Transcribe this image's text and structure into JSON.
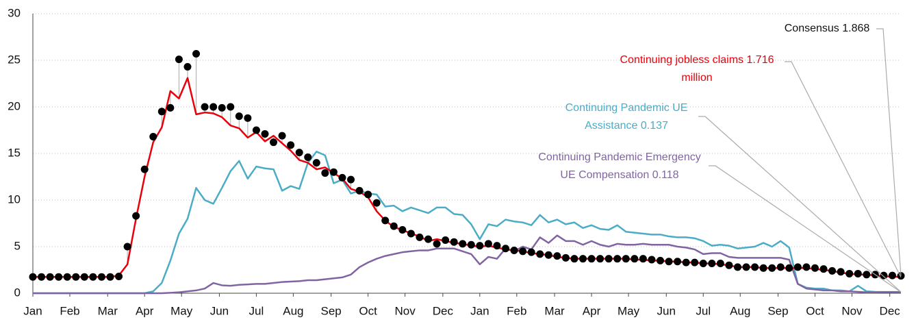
{
  "chart_data": {
    "type": "line",
    "x": [
      0,
      1,
      2,
      3,
      4,
      5,
      6,
      7,
      8,
      9,
      10,
      11,
      12,
      13,
      14,
      15,
      16,
      17,
      18,
      19,
      20,
      21,
      22,
      23,
      24,
      25,
      26,
      27,
      28,
      29,
      30,
      31,
      32,
      33,
      34,
      35,
      36,
      37,
      38,
      39,
      40,
      41,
      42,
      43,
      44,
      45,
      46,
      47,
      48,
      49,
      50,
      51,
      52,
      53,
      54,
      55,
      56,
      57,
      58,
      59,
      60,
      61,
      62,
      63,
      64,
      65,
      66,
      67,
      68,
      69,
      70,
      71,
      72,
      73,
      74,
      75,
      76,
      77,
      78,
      79,
      80,
      81,
      82,
      83,
      84,
      85,
      86,
      87,
      88,
      89,
      90,
      91,
      92,
      93,
      94,
      95,
      96,
      97,
      98,
      99,
      100,
      101
    ],
    "xlim": [
      0,
      101
    ],
    "xticks": [
      {
        "value": 0,
        "label": "Jan"
      },
      {
        "value": 4.3,
        "label": "Feb"
      },
      {
        "value": 8.7,
        "label": "Mar"
      },
      {
        "value": 13,
        "label": "Apr"
      },
      {
        "value": 17.3,
        "label": "May"
      },
      {
        "value": 21.7,
        "label": "Jun"
      },
      {
        "value": 26,
        "label": "Jul"
      },
      {
        "value": 30.3,
        "label": "Aug"
      },
      {
        "value": 34.7,
        "label": "Sep"
      },
      {
        "value": 39,
        "label": "Oct"
      },
      {
        "value": 43.3,
        "label": "Nov"
      },
      {
        "value": 47.7,
        "label": "Dec"
      },
      {
        "value": 52,
        "label": "Jan"
      },
      {
        "value": 56.3,
        "label": "Feb"
      },
      {
        "value": 60.7,
        "label": "Mar"
      },
      {
        "value": 65,
        "label": "Apr"
      },
      {
        "value": 69.3,
        "label": "May"
      },
      {
        "value": 73.7,
        "label": "Jun"
      },
      {
        "value": 78,
        "label": "Jul"
      },
      {
        "value": 82.3,
        "label": "Aug"
      },
      {
        "value": 86.7,
        "label": "Sep"
      },
      {
        "value": 91,
        "label": "Oct"
      },
      {
        "value": 95.3,
        "label": "Nov"
      },
      {
        "value": 99.7,
        "label": "Dec"
      }
    ],
    "ylim": [
      0,
      30
    ],
    "yticks": [
      0,
      5,
      10,
      15,
      20,
      25,
      30
    ],
    "grid": true,
    "drop_lines": true,
    "series": [
      {
        "style": "line",
        "color": "#4bacc6",
        "label": [
          "Continuing Pandemic UE",
          "Assistance 0.137"
        ],
        "values": [
          0,
          0,
          0,
          0,
          0,
          0,
          0,
          0,
          0,
          0,
          0,
          0,
          0,
          0,
          0.2,
          1.1,
          3.5,
          6.4,
          8.0,
          11.3,
          10.0,
          9.6,
          11.3,
          13.1,
          14.2,
          12.3,
          13.6,
          13.4,
          13.3,
          11.0,
          11.5,
          11.2,
          14.0,
          15.2,
          14.8,
          11.8,
          12.2,
          10.7,
          11.0,
          10.7,
          10.6,
          9.3,
          9.4,
          8.8,
          9.2,
          8.9,
          8.6,
          9.2,
          9.2,
          8.5,
          8.4,
          7.4,
          5.8,
          7.4,
          7.2,
          7.9,
          7.7,
          7.6,
          7.3,
          8.4,
          7.6,
          7.9,
          7.4,
          7.6,
          7.0,
          7.3,
          6.9,
          6.8,
          7.3,
          6.6,
          6.5,
          6.4,
          6.3,
          6.3,
          6.1,
          6.0,
          6.0,
          5.9,
          5.6,
          5.1,
          5.2,
          5.1,
          4.8,
          4.9,
          5.0,
          5.4,
          5.0,
          5.6,
          4.9,
          1.0,
          0.6,
          0.5,
          0.5,
          0.3,
          0.3,
          0.2,
          0.8,
          0.2,
          0.15,
          0.14,
          0.14,
          0.137
        ]
      },
      {
        "style": "line",
        "color": "#8064a2",
        "label": [
          "Continuing Pandemic Emergency",
          "UE Compensation 0.118"
        ],
        "values": [
          0,
          0,
          0,
          0,
          0,
          0,
          0,
          0,
          0,
          0,
          0,
          0,
          0,
          0,
          0,
          0,
          0.05,
          0.1,
          0.2,
          0.3,
          0.5,
          1.1,
          0.85,
          0.8,
          0.9,
          0.95,
          1.0,
          1.0,
          1.1,
          1.2,
          1.25,
          1.3,
          1.4,
          1.4,
          1.5,
          1.6,
          1.7,
          2.0,
          2.8,
          3.3,
          3.7,
          4.0,
          4.2,
          4.4,
          4.5,
          4.6,
          4.6,
          4.8,
          4.8,
          4.8,
          4.5,
          4.2,
          3.1,
          3.9,
          3.7,
          4.8,
          4.5,
          5.0,
          4.7,
          6.0,
          5.4,
          6.2,
          5.6,
          5.6,
          5.2,
          5.6,
          5.2,
          5.0,
          5.3,
          5.2,
          5.2,
          5.3,
          5.2,
          5.2,
          5.2,
          5.0,
          4.9,
          4.7,
          4.2,
          4.3,
          4.3,
          3.9,
          3.8,
          3.8,
          3.8,
          3.8,
          3.8,
          3.8,
          3.6,
          1.0,
          0.5,
          0.4,
          0.3,
          0.3,
          0.2,
          0.2,
          0.15,
          0.1,
          0.1,
          0.12,
          0.12,
          0.118
        ]
      },
      {
        "style": "line",
        "color": "#e8000b",
        "label": [
          "Continuing jobless claims 1.716",
          "million"
        ],
        "values": [
          1.75,
          1.75,
          1.75,
          1.75,
          1.75,
          1.75,
          1.75,
          1.75,
          1.75,
          1.75,
          1.9,
          3.1,
          8.0,
          12.5,
          16.2,
          17.8,
          21.7,
          20.9,
          23.1,
          19.2,
          19.4,
          19.3,
          18.9,
          18.0,
          17.7,
          16.7,
          17.3,
          16.3,
          16.9,
          16.1,
          15.3,
          14.3,
          14.0,
          13.3,
          13.5,
          12.9,
          12.3,
          11.2,
          10.9,
          10.3,
          8.8,
          7.8,
          7.1,
          6.8,
          6.4,
          6.1,
          5.6,
          5.8,
          5.6,
          5.4,
          5.3,
          5.1,
          5.0,
          5.1,
          4.9,
          4.7,
          4.6,
          4.5,
          4.3,
          4.2,
          4.1,
          3.9,
          3.8,
          3.7,
          3.7,
          3.7,
          3.7,
          3.7,
          3.7,
          3.7,
          3.6,
          3.6,
          3.5,
          3.5,
          3.4,
          3.4,
          3.3,
          3.3,
          3.2,
          3.2,
          3.1,
          3.0,
          2.8,
          2.8,
          2.8,
          2.7,
          2.7,
          2.7,
          2.7,
          2.7,
          2.7,
          2.6,
          2.5,
          2.4,
          2.2,
          2.1,
          2.0,
          2.0,
          1.9,
          1.8,
          1.8,
          1.716
        ]
      },
      {
        "style": "dots",
        "color": "#000000",
        "label": [
          "Consensus 1.868"
        ],
        "values": [
          1.75,
          1.75,
          1.75,
          1.75,
          1.75,
          1.75,
          1.75,
          1.75,
          1.75,
          1.75,
          1.8,
          5.0,
          8.3,
          13.3,
          16.8,
          19.5,
          19.9,
          25.1,
          24.3,
          25.7,
          20,
          20,
          19.9,
          20,
          19.0,
          18.8,
          17.5,
          17.1,
          16.2,
          16.9,
          15.9,
          15.1,
          14.6,
          14.0,
          12.9,
          13.0,
          12.4,
          12.2,
          11.0,
          10.6,
          9.7,
          7.8,
          7.2,
          6.8,
          6.4,
          6.0,
          5.8,
          5.3,
          5.7,
          5.5,
          5.3,
          5.2,
          5.1,
          5.3,
          5.1,
          4.8,
          4.6,
          4.5,
          4.4,
          4.2,
          4.1,
          4.0,
          3.8,
          3.7,
          3.7,
          3.7,
          3.7,
          3.7,
          3.7,
          3.7,
          3.7,
          3.7,
          3.6,
          3.5,
          3.4,
          3.4,
          3.3,
          3.3,
          3.2,
          3.2,
          3.2,
          3.0,
          2.8,
          2.8,
          2.8,
          2.7,
          2.7,
          2.8,
          2.7,
          2.8,
          2.8,
          2.7,
          2.6,
          2.4,
          2.3,
          2.1,
          2.1,
          2.0,
          2.0,
          1.9,
          1.9,
          1.868
        ]
      }
    ]
  }
}
